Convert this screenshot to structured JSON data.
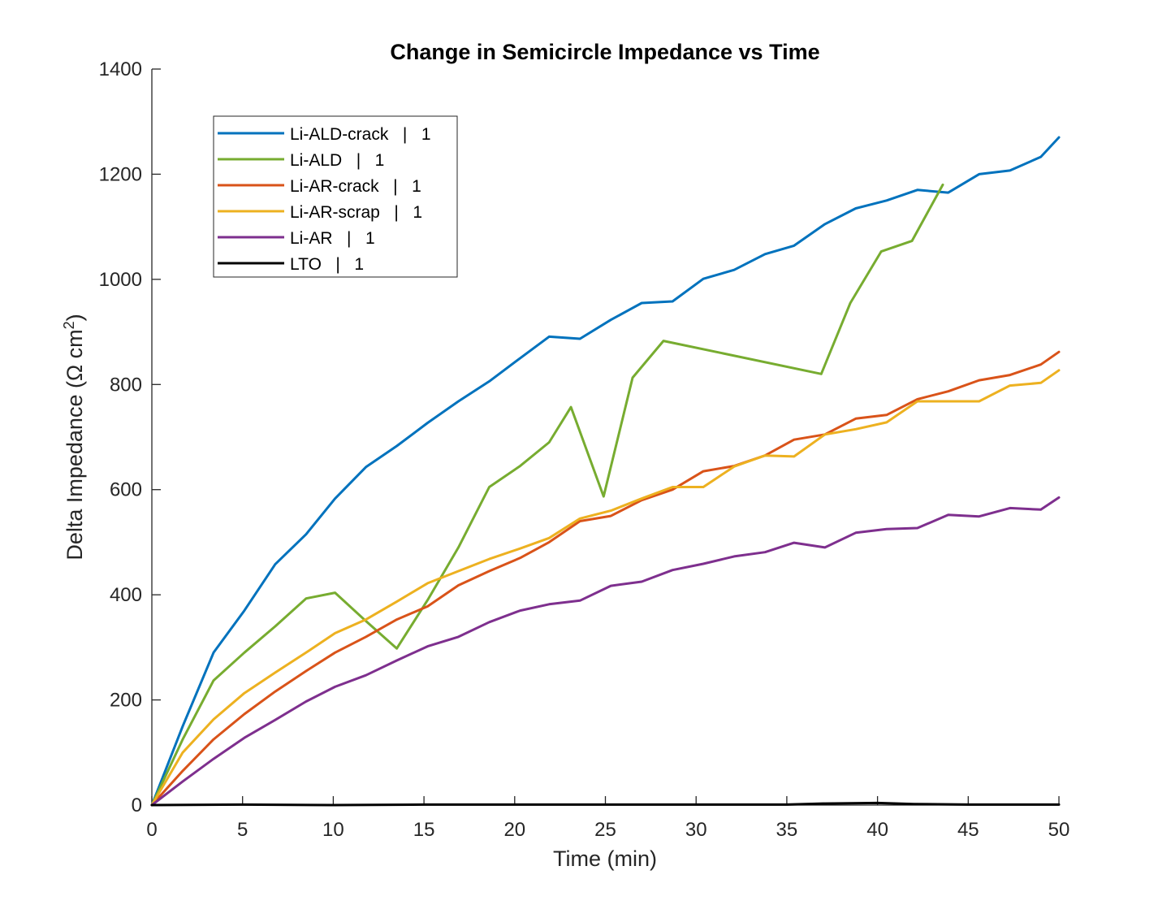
{
  "chart_data": {
    "type": "line",
    "title": "Change in Semicircle Impedance vs Time",
    "xlabel": "Time (min)",
    "ylabel_main": "Delta Impedance (Ω cm",
    "ylabel_sup": "2",
    "ylabel_close": ")",
    "xlim": [
      0,
      50
    ],
    "ylim": [
      0,
      1400
    ],
    "xticks": [
      0,
      5,
      10,
      15,
      20,
      25,
      30,
      35,
      40,
      45,
      50
    ],
    "yticks": [
      0,
      200,
      400,
      600,
      800,
      1000,
      1200,
      1400
    ],
    "grid": false,
    "legend_position": "top-left",
    "series": [
      {
        "name": "Li-ALD-crack   |   1",
        "color": "#0072BD",
        "x": [
          0,
          1.7,
          3.4,
          5.1,
          6.8,
          8.5,
          10.1,
          11.8,
          13.5,
          15.2,
          16.9,
          18.6,
          20.3,
          21.9,
          23.6,
          25.3,
          27.0,
          28.7,
          30.4,
          32.1,
          33.8,
          35.4,
          37.1,
          38.8,
          40.5,
          42.2,
          43.9,
          45.6,
          47.3,
          49.0,
          50.0
        ],
        "values": [
          0,
          150,
          290,
          370,
          458,
          515,
          583,
          643,
          683,
          727,
          768,
          806,
          850,
          891,
          887,
          923,
          955,
          958,
          1001,
          1018,
          1048,
          1064,
          1105,
          1135,
          1150,
          1170,
          1165,
          1200,
          1207,
          1233,
          1270
        ]
      },
      {
        "name": "Li-ALD   |   1",
        "color": "#77AC30",
        "x": [
          0,
          1.7,
          3.4,
          5.1,
          6.8,
          8.5,
          10.1,
          11.8,
          13.5,
          15.2,
          16.9,
          18.6,
          20.3,
          21.9,
          23.1,
          24.9,
          26.5,
          28.2,
          36.9,
          38.5,
          40.2,
          41.9,
          43.6
        ],
        "values": [
          0,
          125,
          237,
          290,
          340,
          393,
          404,
          350,
          298,
          390,
          490,
          605,
          645,
          690,
          757,
          587,
          813,
          883,
          820,
          955,
          1053,
          1073,
          1180
        ]
      },
      {
        "name": "Li-AR-crack   |   1",
        "color": "#D95319",
        "x": [
          0,
          1.7,
          3.4,
          5.1,
          6.8,
          8.5,
          10.1,
          11.8,
          13.5,
          15.2,
          16.9,
          18.6,
          20.3,
          21.9,
          23.6,
          25.3,
          27.0,
          28.7,
          30.4,
          32.1,
          33.8,
          35.4,
          37.1,
          38.8,
          40.5,
          42.2,
          43.9,
          45.6,
          47.3,
          49.0,
          50.0
        ],
        "values": [
          0,
          65,
          125,
          173,
          216,
          255,
          290,
          320,
          353,
          378,
          418,
          445,
          470,
          500,
          540,
          550,
          580,
          600,
          635,
          645,
          665,
          695,
          705,
          735,
          742,
          772,
          787,
          808,
          818,
          838,
          862
        ]
      },
      {
        "name": "Li-AR-scrap   |   1",
        "color": "#EDB120",
        "x": [
          0,
          1.7,
          3.4,
          5.1,
          6.8,
          8.5,
          10.1,
          11.8,
          13.5,
          15.2,
          16.9,
          18.6,
          20.3,
          21.9,
          23.6,
          25.3,
          27.0,
          28.7,
          30.4,
          32.1,
          33.8,
          35.4,
          37.1,
          38.8,
          40.5,
          42.2,
          43.9,
          45.6,
          47.3,
          49.0,
          50.0
        ],
        "values": [
          0,
          100,
          163,
          213,
          252,
          290,
          327,
          353,
          387,
          422,
          445,
          468,
          488,
          508,
          545,
          560,
          583,
          605,
          605,
          644,
          665,
          663,
          705,
          715,
          728,
          768,
          768,
          768,
          798,
          803,
          827
        ]
      },
      {
        "name": "Li-AR   |   1",
        "color": "#7E2F8E",
        "x": [
          0,
          1.7,
          3.4,
          5.1,
          6.8,
          8.5,
          10.1,
          11.8,
          13.5,
          15.2,
          16.9,
          18.6,
          20.3,
          21.9,
          23.6,
          25.3,
          27.0,
          28.7,
          30.4,
          32.1,
          33.8,
          35.4,
          37.1,
          38.8,
          40.5,
          42.2,
          43.9,
          45.6,
          47.3,
          49.0,
          50.0
        ],
        "values": [
          0,
          45,
          88,
          128,
          162,
          197,
          225,
          247,
          275,
          302,
          320,
          348,
          370,
          382,
          389,
          417,
          425,
          447,
          459,
          473,
          481,
          499,
          490,
          518,
          525,
          527,
          552,
          549,
          565,
          562,
          585
        ]
      },
      {
        "name": "LTO   |   1",
        "color": "#000000",
        "x": [
          0,
          5,
          10,
          15,
          20,
          25,
          30,
          35,
          37,
          40,
          42,
          45,
          50
        ],
        "values": [
          0,
          1,
          0,
          1,
          1,
          1,
          1,
          1,
          3,
          4,
          2,
          1,
          1
        ]
      }
    ]
  }
}
